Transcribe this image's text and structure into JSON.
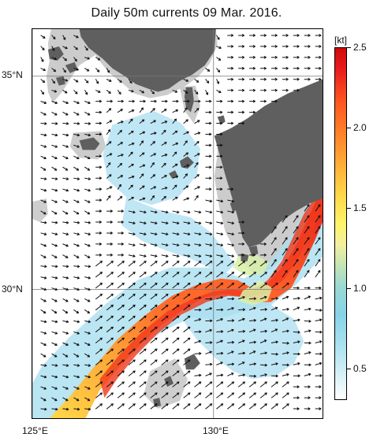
{
  "title": "Daily 50m currents 09 Mar. 2016.",
  "axes": {
    "latitude_labels": [
      "35°N",
      "30°N"
    ],
    "longitude_labels": [
      "125°E",
      "130°E"
    ]
  },
  "colorbar": {
    "unit": "[kt]",
    "ticks": [
      "2.5",
      "2.0",
      "1.5",
      "1.0",
      "0.5"
    ],
    "range": [
      0,
      2.5
    ]
  },
  "colors": {
    "land": "#5f5f5f",
    "shallow_shelf": "#c9c9c9",
    "arrow": "#111111",
    "weak_current": "#a9def0",
    "strong_current": "#d81b1b"
  }
}
